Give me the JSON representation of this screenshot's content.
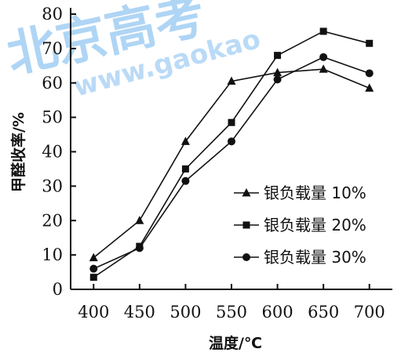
{
  "chart_data": {
    "type": "line",
    "xlabel": "温度/℃",
    "ylabel": "甲醛收率/%",
    "x": [
      400,
      450,
      500,
      550,
      600,
      650,
      700
    ],
    "xlim": [
      375,
      725
    ],
    "ylim": [
      0,
      80
    ],
    "yticks": [
      0,
      10,
      20,
      30,
      40,
      50,
      60,
      70,
      80
    ],
    "grid": false,
    "legend_position": "right",
    "series": [
      {
        "name": "银负载量 10%",
        "marker": "triangle",
        "values": [
          9.2,
          20,
          43,
          60.5,
          63,
          64,
          58.5
        ]
      },
      {
        "name": "银负载量 20%",
        "marker": "square",
        "values": [
          3.5,
          12.5,
          35,
          48.5,
          68,
          75,
          71.5
        ]
      },
      {
        "name": "银负载量 30%",
        "marker": "circle",
        "values": [
          6,
          12,
          31.5,
          43,
          61,
          67.5,
          62.8
        ]
      }
    ]
  },
  "watermark": {
    "text_large": "北京高考",
    "text_url": "www.gaokao",
    "color": "#1e88e5"
  }
}
